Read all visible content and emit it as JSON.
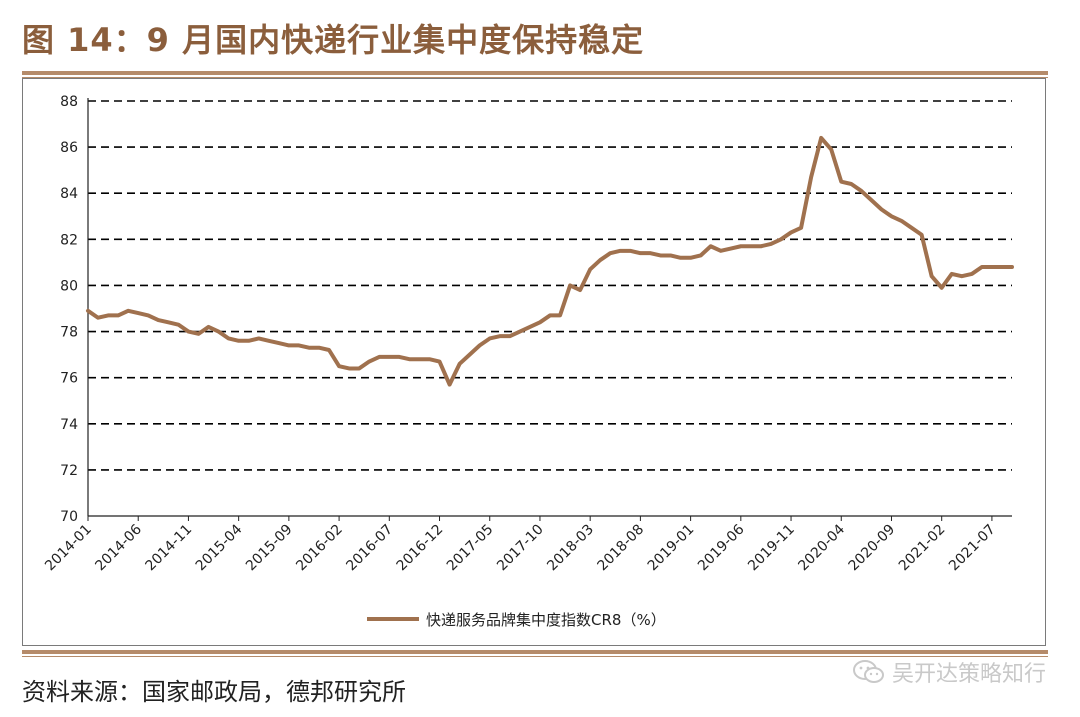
{
  "title": "图 14：9 月国内快递行业集中度保持稳定",
  "source": "资料来源：国家邮政局，德邦研究所",
  "watermark": "吴开达策略知行",
  "colors": {
    "accent": "#8b5e3c",
    "line": "#a0714e",
    "rule": "#b58b6a"
  },
  "chart_data": {
    "type": "line",
    "title": "",
    "xlabel": "",
    "ylabel": "",
    "ylim": [
      70,
      88
    ],
    "yticks": [
      70,
      72,
      74,
      76,
      78,
      80,
      82,
      84,
      86,
      88
    ],
    "grid": "horizontal-dashed",
    "legend_position": "bottom-center",
    "x_tick_labels": [
      "2014-01",
      "2014-06",
      "2014-11",
      "2015-04",
      "2015-09",
      "2016-02",
      "2016-07",
      "2016-12",
      "2017-05",
      "2017-10",
      "2018-03",
      "2018-08",
      "2019-01",
      "2019-06",
      "2019-11",
      "2020-04",
      "2020-09",
      "2021-02",
      "2021-07"
    ],
    "x": [
      "2014-01",
      "2014-02",
      "2014-03",
      "2014-04",
      "2014-05",
      "2014-06",
      "2014-07",
      "2014-08",
      "2014-09",
      "2014-10",
      "2014-11",
      "2014-12",
      "2015-01",
      "2015-02",
      "2015-03",
      "2015-04",
      "2015-05",
      "2015-06",
      "2015-07",
      "2015-08",
      "2015-09",
      "2015-10",
      "2015-11",
      "2015-12",
      "2016-01",
      "2016-02",
      "2016-03",
      "2016-04",
      "2016-05",
      "2016-06",
      "2016-07",
      "2016-08",
      "2016-09",
      "2016-10",
      "2016-11",
      "2016-12",
      "2017-01",
      "2017-02",
      "2017-03",
      "2017-04",
      "2017-05",
      "2017-06",
      "2017-07",
      "2017-08",
      "2017-09",
      "2017-10",
      "2017-11",
      "2017-12",
      "2018-01",
      "2018-02",
      "2018-03",
      "2018-04",
      "2018-05",
      "2018-06",
      "2018-07",
      "2018-08",
      "2018-09",
      "2018-10",
      "2018-11",
      "2018-12",
      "2019-01",
      "2019-02",
      "2019-03",
      "2019-04",
      "2019-05",
      "2019-06",
      "2019-07",
      "2019-08",
      "2019-09",
      "2019-10",
      "2019-11",
      "2019-12",
      "2020-01",
      "2020-02",
      "2020-03",
      "2020-04",
      "2020-05",
      "2020-06",
      "2020-07",
      "2020-08",
      "2020-09",
      "2020-10",
      "2020-11",
      "2020-12",
      "2021-01",
      "2021-02",
      "2021-03",
      "2021-04",
      "2021-05",
      "2021-06",
      "2021-07",
      "2021-08",
      "2021-09"
    ],
    "series": [
      {
        "name": "快递服务品牌集中度指数CR8（%）",
        "color": "#a0714e",
        "values": [
          78.9,
          78.6,
          78.7,
          78.7,
          78.9,
          78.8,
          78.7,
          78.5,
          78.4,
          78.3,
          78.0,
          77.9,
          78.2,
          78.0,
          77.7,
          77.6,
          77.6,
          77.7,
          77.6,
          77.5,
          77.4,
          77.4,
          77.3,
          77.3,
          77.2,
          76.5,
          76.4,
          76.4,
          76.7,
          76.9,
          76.9,
          76.9,
          76.8,
          76.8,
          76.8,
          76.7,
          75.7,
          76.6,
          77.0,
          77.4,
          77.7,
          77.8,
          77.8,
          78.0,
          78.2,
          78.4,
          78.7,
          78.7,
          80.0,
          79.8,
          80.7,
          81.1,
          81.4,
          81.5,
          81.5,
          81.4,
          81.4,
          81.3,
          81.3,
          81.2,
          81.2,
          81.3,
          81.7,
          81.5,
          81.6,
          81.7,
          81.7,
          81.7,
          81.8,
          82.0,
          82.3,
          82.5,
          84.7,
          86.4,
          85.9,
          84.5,
          84.4,
          84.1,
          83.7,
          83.3,
          83.0,
          82.8,
          82.5,
          82.2,
          80.4,
          79.9,
          80.5,
          80.4,
          80.5,
          80.8,
          80.8,
          80.8,
          80.8
        ]
      }
    ]
  }
}
